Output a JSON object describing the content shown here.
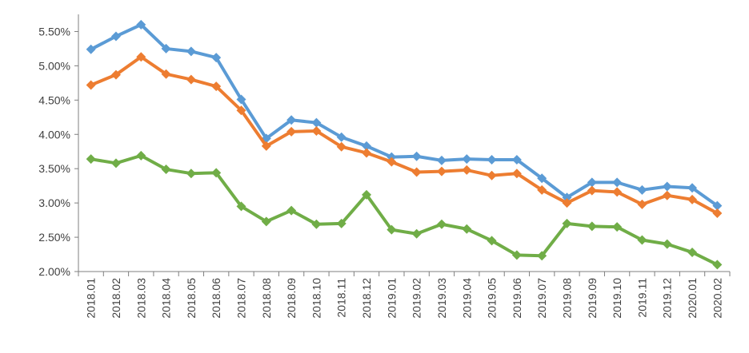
{
  "chart_data": {
    "type": "line",
    "title": "",
    "xlabel": "",
    "ylabel": "",
    "grid": false,
    "legend": "none",
    "categories": [
      "2018.01",
      "2018.02",
      "2018.03",
      "2018.04",
      "2018.05",
      "2018.06",
      "2018.07",
      "2018.08",
      "2018.09",
      "2018.10",
      "2018.11",
      "2018.12",
      "2019.01",
      "2019.02",
      "2019.03",
      "2019.04",
      "2019.05",
      "2019.06",
      "2019.07",
      "2019.08",
      "2019.09",
      "2019.10",
      "2019.11",
      "2019.12",
      "2020.01",
      "2020.02"
    ],
    "ylim": [
      2.0,
      5.75
    ],
    "yticks": [
      2.0,
      2.5,
      3.0,
      3.5,
      4.0,
      4.5,
      5.0,
      5.5
    ],
    "ytick_labels": [
      "2.00%",
      "2.50%",
      "3.00%",
      "3.50%",
      "4.00%",
      "4.50%",
      "5.00%",
      "5.50%"
    ],
    "series": [
      {
        "color": "#5b9bd5",
        "values": [
          5.24,
          5.43,
          5.6,
          5.25,
          5.21,
          5.12,
          4.51,
          3.94,
          4.21,
          4.17,
          3.96,
          3.83,
          3.67,
          3.68,
          3.62,
          3.64,
          3.63,
          3.63,
          3.36,
          3.08,
          3.3,
          3.3,
          3.19,
          3.24,
          3.22,
          2.96
        ]
      },
      {
        "color": "#ed7d31",
        "values": [
          4.72,
          4.87,
          5.13,
          4.88,
          4.8,
          4.7,
          4.35,
          3.83,
          4.04,
          4.05,
          3.82,
          3.73,
          3.6,
          3.45,
          3.46,
          3.48,
          3.4,
          3.43,
          3.19,
          3.0,
          3.18,
          3.16,
          2.98,
          3.11,
          3.05,
          2.85
        ]
      },
      {
        "color": "#70ad47",
        "values": [
          3.64,
          3.58,
          3.69,
          3.49,
          3.43,
          3.44,
          2.95,
          2.73,
          2.89,
          2.69,
          2.7,
          3.12,
          2.61,
          2.55,
          2.69,
          2.62,
          2.45,
          2.24,
          2.23,
          2.7,
          2.66,
          2.65,
          2.46,
          2.4,
          2.28,
          2.1
        ]
      }
    ]
  }
}
